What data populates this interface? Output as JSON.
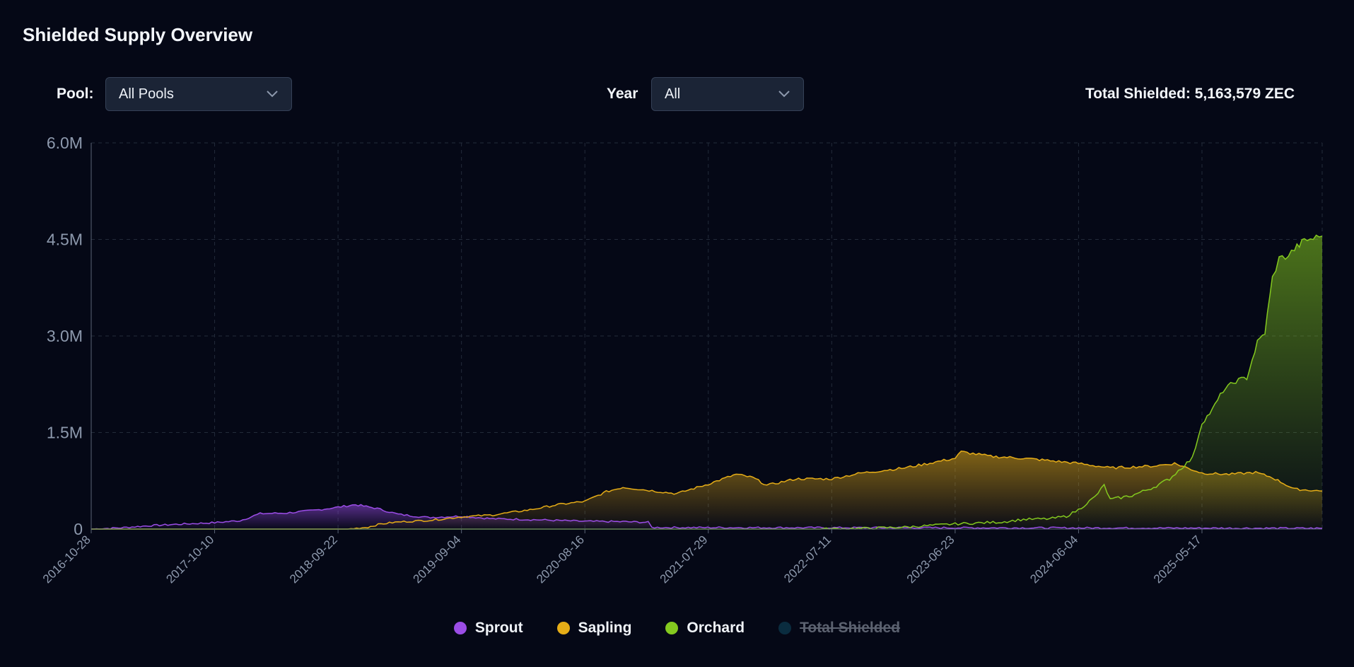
{
  "header": {
    "title": "Shielded Supply Overview"
  },
  "controls": {
    "pool_label": "Pool:",
    "pool_value": "All Pools",
    "year_label": "Year",
    "year_value": "All",
    "total_text": "Total Shielded: 5,163,579 ZEC"
  },
  "colors": {
    "sprout": "#9b4de6",
    "sapling": "#e6ad17",
    "orchard": "#84c91f",
    "total": "#0f4a63"
  },
  "chart_data": {
    "type": "area",
    "x_tick_labels": [
      "2016-10-28",
      "2017-10-10",
      "2018-09-22",
      "2019-09-04",
      "2020-08-16",
      "2021-07-29",
      "2022-07-11",
      "2023-06-23",
      "2024-06-04",
      "2025-05-17"
    ],
    "y_tick_labels": [
      "0",
      "1.5M",
      "3.0M",
      "4.5M",
      "6.0M"
    ],
    "y_ticks": [
      0,
      1500000,
      3000000,
      4500000,
      6000000
    ],
    "ylim": [
      0,
      6000000
    ],
    "x_range": [
      "2016-10-28",
      "2026-04-20"
    ],
    "grid": true,
    "legend_position": "bottom-center",
    "series": [
      {
        "name": "Sprout",
        "key": "sprout",
        "points": [
          [
            "2016-10-28",
            0
          ],
          [
            "2017-01-20",
            20000
          ],
          [
            "2017-04-15",
            55000
          ],
          [
            "2017-07-01",
            75000
          ],
          [
            "2017-10-10",
            100000
          ],
          [
            "2017-12-20",
            130000
          ],
          [
            "2018-02-15",
            240000
          ],
          [
            "2018-05-01",
            250000
          ],
          [
            "2018-07-15",
            290000
          ],
          [
            "2018-09-22",
            340000
          ],
          [
            "2018-11-10",
            380000
          ],
          [
            "2019-01-10",
            320000
          ],
          [
            "2019-03-10",
            230000
          ],
          [
            "2019-06-01",
            180000
          ],
          [
            "2019-09-04",
            200000
          ],
          [
            "2019-12-01",
            160000
          ],
          [
            "2020-03-01",
            150000
          ],
          [
            "2020-08-16",
            120000
          ],
          [
            "2020-12-01",
            115000
          ],
          [
            "2021-02-10",
            105000
          ],
          [
            "2021-02-20",
            25000
          ],
          [
            "2022-01-01",
            22000
          ],
          [
            "2023-06-23",
            20000
          ],
          [
            "2024-06-04",
            18000
          ],
          [
            "2025-05-17",
            15000
          ],
          [
            "2026-04-20",
            12000
          ]
        ]
      },
      {
        "name": "Sapling",
        "key": "sapling",
        "points": [
          [
            "2016-10-28",
            0
          ],
          [
            "2018-10-20",
            0
          ],
          [
            "2018-12-15",
            30000
          ],
          [
            "2019-01-20",
            80000
          ],
          [
            "2019-03-10",
            110000
          ],
          [
            "2019-06-15",
            140000
          ],
          [
            "2019-09-04",
            190000
          ],
          [
            "2019-12-01",
            220000
          ],
          [
            "2020-03-15",
            300000
          ],
          [
            "2020-06-01",
            380000
          ],
          [
            "2020-08-16",
            430000
          ],
          [
            "2020-10-15",
            580000
          ],
          [
            "2020-12-01",
            650000
          ],
          [
            "2021-03-01",
            590000
          ],
          [
            "2021-05-01",
            550000
          ],
          [
            "2021-07-29",
            700000
          ],
          [
            "2021-10-15",
            850000
          ],
          [
            "2021-12-01",
            800000
          ],
          [
            "2022-01-10",
            680000
          ],
          [
            "2022-04-01",
            780000
          ],
          [
            "2022-07-11",
            780000
          ],
          [
            "2022-10-01",
            870000
          ],
          [
            "2023-02-01",
            950000
          ],
          [
            "2023-06-23",
            1100000
          ],
          [
            "2023-07-10",
            1200000
          ],
          [
            "2023-10-01",
            1130000
          ],
          [
            "2024-01-01",
            1100000
          ],
          [
            "2024-03-01",
            1070000
          ],
          [
            "2024-06-04",
            1020000
          ],
          [
            "2024-09-01",
            950000
          ],
          [
            "2025-01-01",
            980000
          ],
          [
            "2025-03-01",
            1020000
          ],
          [
            "2025-05-17",
            870000
          ],
          [
            "2025-08-01",
            850000
          ],
          [
            "2025-10-15",
            880000
          ],
          [
            "2025-12-01",
            800000
          ],
          [
            "2026-02-01",
            620000
          ],
          [
            "2026-04-20",
            590000
          ]
        ]
      },
      {
        "name": "Orchard",
        "key": "orchard",
        "points": [
          [
            "2016-10-28",
            0
          ],
          [
            "2022-06-01",
            0
          ],
          [
            "2022-10-01",
            10000
          ],
          [
            "2023-02-01",
            30000
          ],
          [
            "2023-06-23",
            80000
          ],
          [
            "2023-11-01",
            110000
          ],
          [
            "2024-01-01",
            150000
          ],
          [
            "2024-03-15",
            160000
          ],
          [
            "2024-05-01",
            200000
          ],
          [
            "2024-06-04",
            300000
          ],
          [
            "2024-07-20",
            500000
          ],
          [
            "2024-08-15",
            680000
          ],
          [
            "2024-09-01",
            460000
          ],
          [
            "2024-11-01",
            520000
          ],
          [
            "2025-01-01",
            650000
          ],
          [
            "2025-02-15",
            780000
          ],
          [
            "2025-03-20",
            950000
          ],
          [
            "2025-04-20",
            1100000
          ],
          [
            "2025-05-17",
            1650000
          ],
          [
            "2025-06-15",
            1850000
          ],
          [
            "2025-07-15",
            2150000
          ],
          [
            "2025-08-20",
            2300000
          ],
          [
            "2025-09-20",
            2350000
          ],
          [
            "2025-10-20",
            2900000
          ],
          [
            "2025-11-10",
            3050000
          ],
          [
            "2025-12-01",
            3900000
          ],
          [
            "2025-12-20",
            4200000
          ],
          [
            "2026-01-15",
            4250000
          ],
          [
            "2026-02-01",
            4350000
          ],
          [
            "2026-03-01",
            4480000
          ],
          [
            "2026-04-20",
            4550000
          ]
        ]
      }
    ],
    "legend": [
      {
        "name": "Sprout",
        "key": "sprout",
        "enabled": true
      },
      {
        "name": "Sapling",
        "key": "sapling",
        "enabled": true
      },
      {
        "name": "Orchard",
        "key": "orchard",
        "enabled": true
      },
      {
        "name": "Total Shielded",
        "key": "total",
        "enabled": false
      }
    ]
  }
}
